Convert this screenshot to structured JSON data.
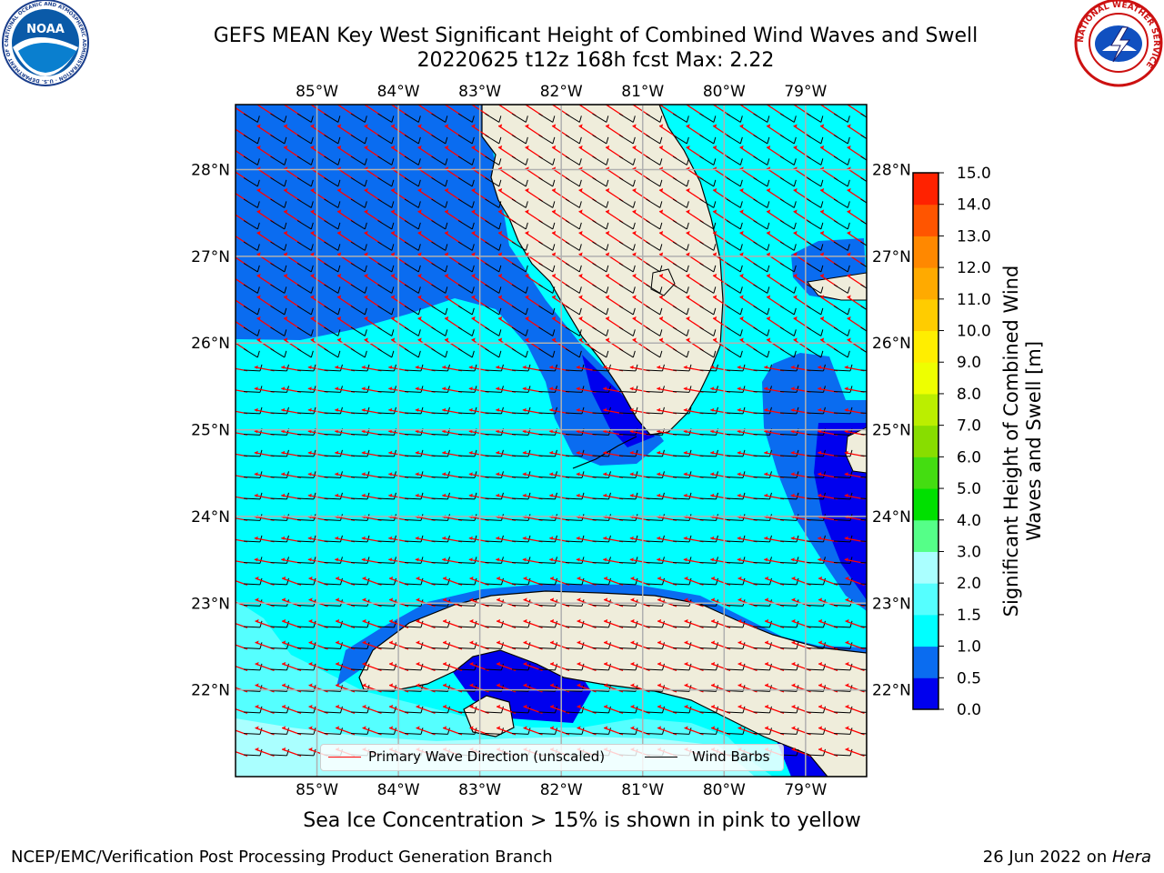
{
  "title": {
    "line1": "GEFS MEAN Key West Significant Height of Combined Wind Waves and Swell",
    "line2": "20220625 t12z 168h fcst   Max: 2.22"
  },
  "map": {
    "lon_min": -86.0,
    "lon_max": -78.25,
    "lat_min": 21.0,
    "lat_max": 28.75,
    "lon_ticks": [
      "85°W",
      "84°W",
      "83°W",
      "82°W",
      "81°W",
      "80°W",
      "79°W"
    ],
    "lat_ticks": [
      "22°N",
      "23°N",
      "24°N",
      "25°N",
      "26°N",
      "27°N",
      "28°N"
    ],
    "grid": true
  },
  "colorbar": {
    "title": "Significant Height of Combined Wind Waves and Swell [m]",
    "labels": [
      "0.0",
      "0.5",
      "1.0",
      "1.5",
      "2.0",
      "3.0",
      "4.0",
      "5.0",
      "6.0",
      "7.0",
      "8.0",
      "9.0",
      "10.0",
      "11.0",
      "12.0",
      "13.0",
      "14.0",
      "15.0"
    ],
    "colors": [
      "#0000ee",
      "#0a6cf0",
      "#00ffff",
      "#55ffff",
      "#aaffff",
      "#55ff88",
      "#00e000",
      "#44dd11",
      "#88dd00",
      "#bbee00",
      "#eeff00",
      "#ffee00",
      "#ffcc00",
      "#ffaa00",
      "#ff8800",
      "#ff5500",
      "#ff2200"
    ]
  },
  "legend": {
    "wave_direction": "Primary Wave Direction (unscaled)",
    "wind_barbs": "Wind Barbs",
    "wave_color": "#ff0000",
    "barb_color": "#000000"
  },
  "ice_note": "Sea Ice Concentration > 15% is shown in pink to yellow",
  "footer": {
    "left": "NCEP/EMC/Verification Post Processing Product Generation Branch",
    "date": "26 Jun 2022 on ",
    "machine": "Hera"
  },
  "logos": {
    "noaa_text": "NOAA",
    "noaa_ring": "NATIONAL OCEANIC AND ATMOSPHERIC ADMINISTRATION · U.S. DEPARTMENT OF COMMERCE",
    "nws_ring": "NATIONAL WEATHER SERVICE"
  }
}
